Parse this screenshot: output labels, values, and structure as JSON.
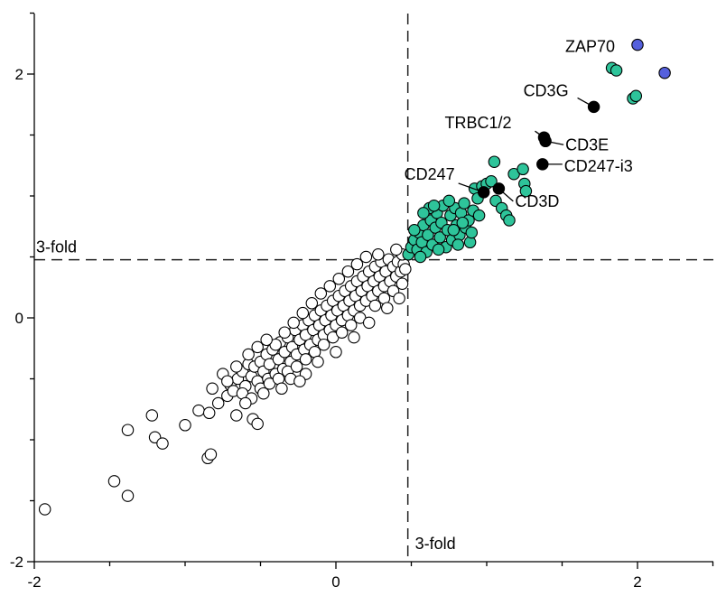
{
  "chart_data": {
    "type": "scatter",
    "title": "",
    "xlabel": "",
    "ylabel": "",
    "xlim": [
      -2,
      2.5
    ],
    "ylim": [
      -2,
      2.5
    ],
    "x_ticks": [
      "-2",
      "0",
      "2"
    ],
    "y_ticks": [
      "-2",
      "0",
      "2"
    ],
    "grid": false,
    "thresholds": {
      "x": 0.477,
      "y": 0.477,
      "x_label": "3-fold",
      "y_label": "3-fold"
    },
    "colors": {
      "not_enriched": "#ffffff",
      "enriched": "#2ec49a",
      "highlight": "#000000",
      "bait": "#5560dd"
    },
    "series": [
      {
        "group": "not_enriched",
        "points": [
          [
            -1.93,
            -1.57
          ],
          [
            -1.47,
            -1.34
          ],
          [
            -1.38,
            -1.46
          ],
          [
            -1.38,
            -0.92
          ],
          [
            -1.22,
            -0.8
          ],
          [
            -1.2,
            -0.98
          ],
          [
            -1.15,
            -1.03
          ],
          [
            -1.0,
            -0.88
          ],
          [
            -0.91,
            -0.76
          ],
          [
            -0.84,
            -0.78
          ],
          [
            -0.85,
            -1.15
          ],
          [
            -0.83,
            -1.12
          ],
          [
            -0.82,
            -0.58
          ],
          [
            -0.78,
            -0.7
          ],
          [
            -0.72,
            -0.64
          ],
          [
            -0.66,
            -0.8
          ],
          [
            -0.55,
            -0.83
          ],
          [
            -0.52,
            -0.87
          ],
          [
            -0.75,
            -0.46
          ],
          [
            -0.7,
            -0.55
          ],
          [
            -0.68,
            -0.6
          ],
          [
            -0.65,
            -0.5
          ],
          [
            -0.62,
            -0.44
          ],
          [
            -0.6,
            -0.56
          ],
          [
            -0.58,
            -0.38
          ],
          [
            -0.56,
            -0.48
          ],
          [
            -0.54,
            -0.4
          ],
          [
            -0.52,
            -0.52
          ],
          [
            -0.5,
            -0.36
          ],
          [
            -0.48,
            -0.44
          ],
          [
            -0.46,
            -0.3
          ],
          [
            -0.45,
            -0.5
          ],
          [
            -0.44,
            -0.38
          ],
          [
            -0.42,
            -0.26
          ],
          [
            -0.4,
            -0.46
          ],
          [
            -0.38,
            -0.34
          ],
          [
            -0.37,
            -0.2
          ],
          [
            -0.35,
            -0.42
          ],
          [
            -0.34,
            -0.28
          ],
          [
            -0.32,
            -0.16
          ],
          [
            -0.3,
            -0.36
          ],
          [
            -0.29,
            -0.24
          ],
          [
            -0.27,
            -0.1
          ],
          [
            -0.26,
            -0.3
          ],
          [
            -0.24,
            -0.18
          ],
          [
            -0.22,
            -0.06
          ],
          [
            -0.21,
            -0.26
          ],
          [
            -0.2,
            -0.14
          ],
          [
            -0.18,
            -0.02
          ],
          [
            -0.17,
            -0.22
          ],
          [
            -0.15,
            -0.1
          ],
          [
            -0.14,
            0.02
          ],
          [
            -0.12,
            -0.18
          ],
          [
            -0.11,
            -0.06
          ],
          [
            -0.1,
            0.06
          ],
          [
            -0.08,
            -0.14
          ],
          [
            -0.07,
            -0.02
          ],
          [
            -0.06,
            0.1
          ],
          [
            -0.04,
            -0.1
          ],
          [
            -0.03,
            0.02
          ],
          [
            -0.02,
            0.14
          ],
          [
            0.0,
            -0.06
          ],
          [
            0.01,
            0.06
          ],
          [
            0.02,
            0.18
          ],
          [
            0.04,
            -0.02
          ],
          [
            0.05,
            0.1
          ],
          [
            0.06,
            0.22
          ],
          [
            0.08,
            0.02
          ],
          [
            0.09,
            0.14
          ],
          [
            0.1,
            0.26
          ],
          [
            0.12,
            0.06
          ],
          [
            0.13,
            0.18
          ],
          [
            0.14,
            0.3
          ],
          [
            0.16,
            0.1
          ],
          [
            0.17,
            0.22
          ],
          [
            0.18,
            0.34
          ],
          [
            0.2,
            0.14
          ],
          [
            0.21,
            0.26
          ],
          [
            0.22,
            0.38
          ],
          [
            0.24,
            0.18
          ],
          [
            0.25,
            0.3
          ],
          [
            0.26,
            0.42
          ],
          [
            0.28,
            0.22
          ],
          [
            0.29,
            0.34
          ],
          [
            0.3,
            0.46
          ],
          [
            0.32,
            0.26
          ],
          [
            0.33,
            0.38
          ],
          [
            0.35,
            0.48
          ],
          [
            0.36,
            0.3
          ],
          [
            0.38,
            0.42
          ],
          [
            0.4,
            0.34
          ],
          [
            0.41,
            0.46
          ],
          [
            0.43,
            0.38
          ],
          [
            0.45,
            0.44
          ],
          [
            0.46,
            0.4
          ],
          [
            -0.62,
            -0.62
          ],
          [
            -0.56,
            -0.66
          ],
          [
            -0.5,
            -0.58
          ],
          [
            -0.44,
            -0.54
          ],
          [
            -0.38,
            -0.5
          ],
          [
            -0.32,
            -0.44
          ],
          [
            -0.26,
            -0.4
          ],
          [
            -0.2,
            -0.34
          ],
          [
            -0.14,
            -0.28
          ],
          [
            -0.08,
            -0.22
          ],
          [
            -0.02,
            -0.16
          ],
          [
            0.04,
            -0.12
          ],
          [
            0.1,
            -0.06
          ],
          [
            0.16,
            0.0
          ],
          [
            -0.4,
            -0.22
          ],
          [
            -0.34,
            -0.12
          ],
          [
            -0.28,
            -0.04
          ],
          [
            -0.22,
            0.04
          ],
          [
            -0.16,
            0.12
          ],
          [
            -0.1,
            0.2
          ],
          [
            -0.04,
            0.26
          ],
          [
            0.02,
            0.32
          ],
          [
            0.08,
            0.38
          ],
          [
            0.14,
            0.44
          ],
          [
            -0.3,
            -0.5
          ],
          [
            0.26,
            0.1
          ],
          [
            0.32,
            0.16
          ],
          [
            0.38,
            0.22
          ],
          [
            0.44,
            0.28
          ],
          [
            -0.58,
            -0.3
          ],
          [
            -0.52,
            -0.24
          ],
          [
            -0.46,
            -0.18
          ],
          [
            -0.2,
            -0.46
          ],
          [
            0.2,
            0.5
          ],
          [
            0.28,
            0.52
          ],
          [
            -0.66,
            -0.4
          ],
          [
            -0.72,
            -0.52
          ],
          [
            -0.6,
            -0.7
          ],
          [
            -0.48,
            -0.62
          ],
          [
            -0.36,
            -0.58
          ],
          [
            -0.24,
            -0.52
          ],
          [
            -0.12,
            -0.36
          ],
          [
            0.0,
            -0.28
          ],
          [
            0.12,
            -0.16
          ],
          [
            0.22,
            -0.04
          ],
          [
            0.34,
            0.08
          ],
          [
            0.42,
            0.16
          ],
          [
            0.44,
            0.52
          ],
          [
            0.4,
            0.56
          ]
        ]
      },
      {
        "group": "enriched",
        "points": [
          [
            0.48,
            0.52
          ],
          [
            0.5,
            0.58
          ],
          [
            0.52,
            0.64
          ],
          [
            0.54,
            0.56
          ],
          [
            0.55,
            0.7
          ],
          [
            0.57,
            0.62
          ],
          [
            0.58,
            0.76
          ],
          [
            0.6,
            0.54
          ],
          [
            0.61,
            0.68
          ],
          [
            0.63,
            0.8
          ],
          [
            0.64,
            0.6
          ],
          [
            0.66,
            0.74
          ],
          [
            0.67,
            0.86
          ],
          [
            0.69,
            0.66
          ],
          [
            0.7,
            0.78
          ],
          [
            0.71,
            0.92
          ],
          [
            0.73,
            0.58
          ],
          [
            0.74,
            0.72
          ],
          [
            0.76,
            0.84
          ],
          [
            0.77,
            0.64
          ],
          [
            0.79,
            0.9
          ],
          [
            0.8,
            0.76
          ],
          [
            0.82,
            0.68
          ],
          [
            0.83,
            0.86
          ],
          [
            0.85,
            0.94
          ],
          [
            0.86,
            0.74
          ],
          [
            0.88,
            0.8
          ],
          [
            0.89,
            0.62
          ],
          [
            0.91,
            0.88
          ],
          [
            0.92,
            1.06
          ],
          [
            0.94,
            0.98
          ],
          [
            0.95,
            0.84
          ],
          [
            0.97,
            1.08
          ],
          [
            1.0,
            1.1
          ],
          [
            1.03,
            1.12
          ],
          [
            1.06,
            0.96
          ],
          [
            1.1,
            0.9
          ],
          [
            1.13,
            0.84
          ],
          [
            1.15,
            0.8
          ],
          [
            1.05,
            1.28
          ],
          [
            1.18,
            1.18
          ],
          [
            1.24,
            1.22
          ],
          [
            1.25,
            1.1
          ],
          [
            1.26,
            1.04
          ],
          [
            0.56,
            0.5
          ],
          [
            0.62,
            0.9
          ],
          [
            0.68,
            0.56
          ],
          [
            0.75,
            0.96
          ],
          [
            0.81,
            0.6
          ],
          [
            0.9,
            0.7
          ],
          [
            0.52,
            0.72
          ],
          [
            0.58,
            0.86
          ],
          [
            0.65,
            0.92
          ],
          [
            0.78,
            0.72
          ],
          [
            0.84,
            0.78
          ],
          [
            1.83,
            2.05
          ],
          [
            1.86,
            2.03
          ],
          [
            1.97,
            1.8
          ],
          [
            1.99,
            1.82
          ]
        ]
      },
      {
        "group": "highlight",
        "points": [
          [
            1.71,
            1.73
          ],
          [
            1.38,
            1.48
          ],
          [
            1.39,
            1.45
          ],
          [
            1.37,
            1.26
          ],
          [
            0.98,
            1.03
          ],
          [
            1.08,
            1.06
          ]
        ]
      },
      {
        "group": "bait",
        "points": [
          [
            2.0,
            2.24
          ],
          [
            2.18,
            2.01
          ]
        ]
      }
    ],
    "annotations": [
      {
        "text": "ZAP70",
        "x": 2.0,
        "y": 2.24
      },
      {
        "text": "CD3G",
        "x": 1.71,
        "y": 1.73
      },
      {
        "text": "TRBC1/2",
        "x": 1.38,
        "y": 1.48
      },
      {
        "text": "CD3E",
        "x": 1.39,
        "y": 1.45
      },
      {
        "text": "CD247-i3",
        "x": 1.37,
        "y": 1.26
      },
      {
        "text": "CD247",
        "x": 0.98,
        "y": 1.03
      },
      {
        "text": "CD3D",
        "x": 1.08,
        "y": 1.06
      }
    ]
  }
}
